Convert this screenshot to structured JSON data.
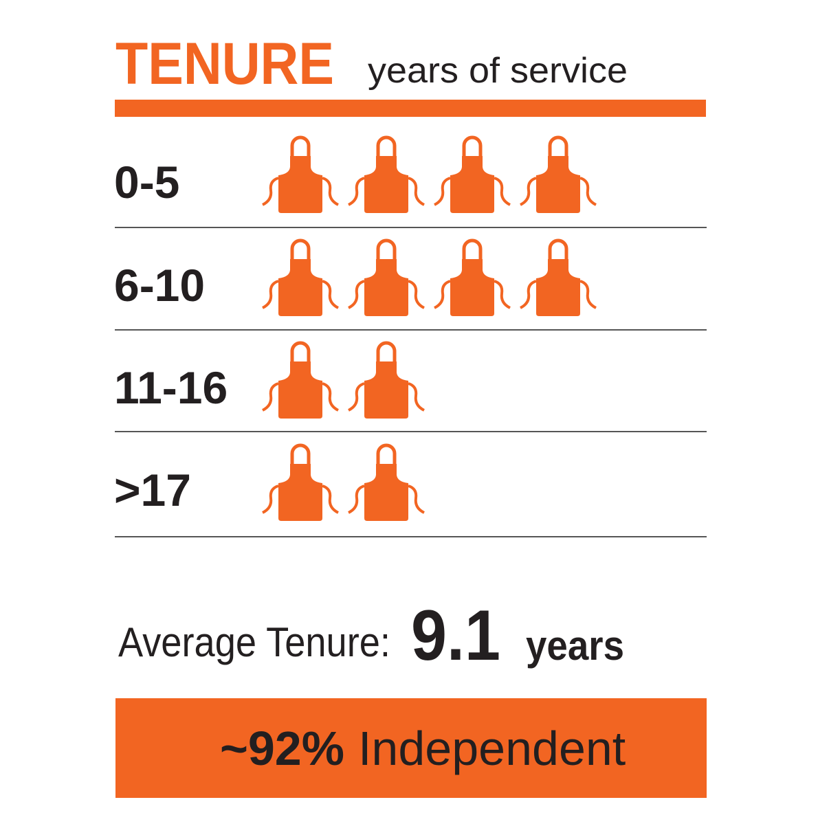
{
  "chart_data": {
    "type": "pictograph",
    "title": "TENURE",
    "subtitle": "years of service",
    "categories": [
      "0-5",
      "6-10",
      "11-16",
      ">17"
    ],
    "values": [
      4,
      4,
      2,
      2
    ],
    "color": "#f26522"
  },
  "summary": {
    "label": "Average Tenure:",
    "value": 9.1,
    "unit": "years"
  },
  "banner": {
    "value": "~92%",
    "text": "Independent"
  }
}
